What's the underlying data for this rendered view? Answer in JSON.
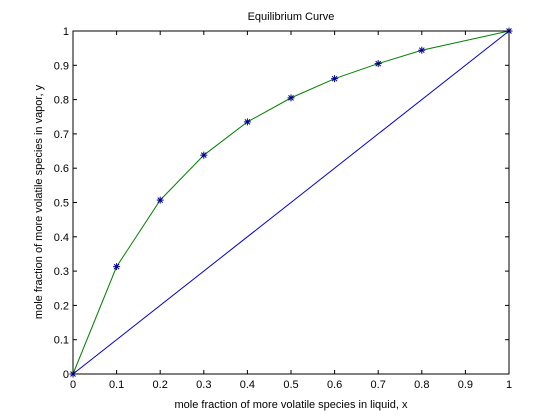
{
  "chart_data": {
    "type": "line",
    "title": "Equilibrium Curve",
    "xlabel": "mole fraction of more volatile species in liquid, x",
    "ylabel": "mole fraction of more volatile species in vapor, y",
    "xlim": [
      0,
      1
    ],
    "ylim": [
      0,
      1
    ],
    "xticks": [
      0,
      0.1,
      0.2,
      0.3,
      0.4,
      0.5,
      0.6,
      0.7,
      0.8,
      0.9,
      1
    ],
    "xtick_labels": [
      "0",
      "0.1",
      "0.2",
      "0.3",
      "0.4",
      "0.5",
      "0.6",
      "0.7",
      "0.8",
      "0.9",
      "1"
    ],
    "yticks": [
      0,
      0.1,
      0.2,
      0.3,
      0.4,
      0.5,
      0.6,
      0.7,
      0.8,
      0.9,
      1
    ],
    "ytick_labels": [
      "0",
      "0.1",
      "0.2",
      "0.3",
      "0.4",
      "0.5",
      "0.6",
      "0.7",
      "0.8",
      "0.9",
      "1"
    ],
    "grid": false,
    "series": [
      {
        "style": "line",
        "color": "#0000cc",
        "x": [
          0,
          1
        ],
        "y": [
          0,
          1
        ]
      },
      {
        "style": "line",
        "color": "#008000",
        "x": [
          0,
          0.1,
          0.2,
          0.3,
          0.4,
          0.5,
          0.6,
          0.7,
          0.8,
          1
        ],
        "y": [
          0,
          0.313,
          0.507,
          0.638,
          0.735,
          0.805,
          0.861,
          0.905,
          0.944,
          1
        ]
      },
      {
        "style": "markers",
        "marker": "*",
        "color": "#00008b",
        "x": [
          0,
          0.1,
          0.2,
          0.3,
          0.4,
          0.5,
          0.6,
          0.7,
          0.8,
          1
        ],
        "y": [
          0,
          0.313,
          0.507,
          0.638,
          0.735,
          0.805,
          0.861,
          0.905,
          0.944,
          1
        ]
      }
    ]
  }
}
